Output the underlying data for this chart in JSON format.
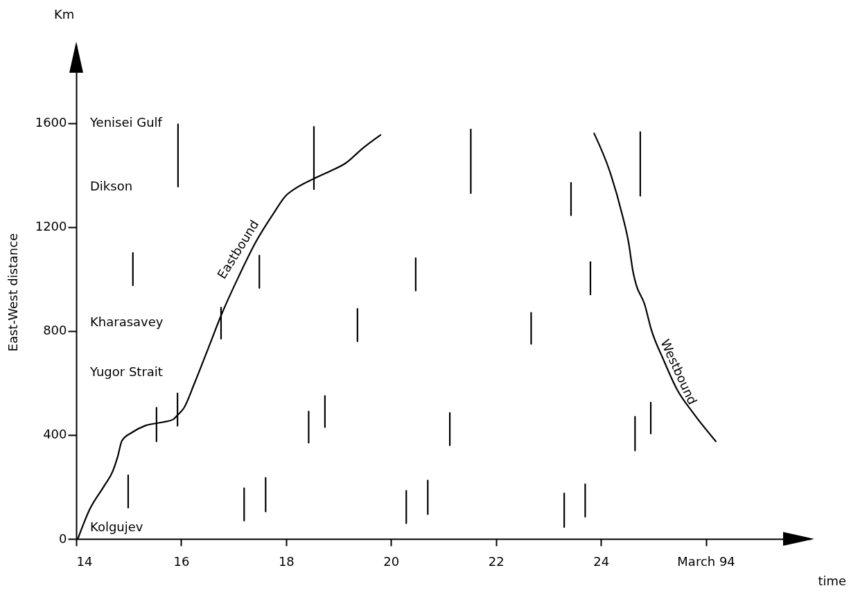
{
  "chart_data": {
    "type": "line",
    "xlabel": "time",
    "ylabel": "East-West distance",
    "xlim": [
      14,
      28
    ],
    "ylim": [
      0,
      1900
    ],
    "xticks": [
      14,
      16,
      18,
      20,
      22,
      24,
      {
        "value": 26,
        "label": "March 94"
      }
    ],
    "yticks": [
      0,
      400,
      800,
      1200,
      1600
    ],
    "grid": false,
    "line_style": "solid",
    "series": [
      {
        "name": "Eastbound",
        "color": "#000000",
        "x": [
          14.03,
          14.26,
          14.53,
          14.7,
          14.79,
          14.87,
          15.06,
          15.32,
          15.65,
          15.85,
          15.93,
          16.05,
          16.25,
          16.51,
          16.77,
          17.1,
          17.43,
          17.76,
          17.99,
          18.16,
          18.53,
          18.82,
          19.13,
          19.48,
          19.8
        ],
        "values": [
          0,
          115,
          203,
          262,
          316,
          377,
          409,
          436,
          449,
          460,
          476,
          503,
          597,
          730,
          864,
          1011,
          1145,
          1252,
          1319,
          1346,
          1386,
          1413,
          1445,
          1506,
          1554
        ]
      },
      {
        "name": "Westbound",
        "color": "#000000",
        "x": [
          23.87,
          24.17,
          24.4,
          24.53,
          24.61,
          24.67,
          24.83,
          24.96,
          25.19,
          25.45,
          25.76,
          26.19
        ],
        "values": [
          1560,
          1413,
          1252,
          1137,
          1030,
          979,
          904,
          805,
          690,
          575,
          484,
          375
        ]
      },
      {
        "color": "#000000",
        "x": [
          14.99,
          14.99
        ],
        "values": [
          120,
          245
        ]
      },
      {
        "color": "#000000",
        "x": [
          15.08,
          15.08
        ],
        "values": [
          975,
          1100
        ]
      },
      {
        "color": "#000000",
        "x": [
          15.53,
          15.53
        ],
        "values": [
          375,
          505
        ]
      },
      {
        "color": "#000000",
        "x": [
          15.93,
          15.93
        ],
        "values": [
          435,
          560
        ]
      },
      {
        "color": "#000000",
        "x": [
          15.94,
          15.94
        ],
        "values": [
          1355,
          1595
        ]
      },
      {
        "color": "#000000",
        "x": [
          16.76,
          16.76
        ],
        "values": [
          770,
          890
        ]
      },
      {
        "color": "#000000",
        "x": [
          17.2,
          17.2
        ],
        "values": [
          70,
          195
        ]
      },
      {
        "color": "#000000",
        "x": [
          17.49,
          17.49
        ],
        "values": [
          965,
          1090
        ]
      },
      {
        "color": "#000000",
        "x": [
          17.61,
          17.61
        ],
        "values": [
          105,
          235
        ]
      },
      {
        "color": "#000000",
        "x": [
          18.43,
          18.43
        ],
        "values": [
          370,
          490
        ]
      },
      {
        "color": "#000000",
        "x": [
          18.53,
          18.53
        ],
        "values": [
          1345,
          1585
        ]
      },
      {
        "color": "#000000",
        "x": [
          18.74,
          18.74
        ],
        "values": [
          430,
          550
        ]
      },
      {
        "color": "#000000",
        "x": [
          19.36,
          19.36
        ],
        "values": [
          760,
          885
        ]
      },
      {
        "color": "#000000",
        "x": [
          20.29,
          20.29
        ],
        "values": [
          60,
          185
        ]
      },
      {
        "color": "#000000",
        "x": [
          20.47,
          20.47
        ],
        "values": [
          955,
          1080
        ]
      },
      {
        "color": "#000000",
        "x": [
          20.7,
          20.7
        ],
        "values": [
          95,
          225
        ]
      },
      {
        "color": "#000000",
        "x": [
          21.12,
          21.12
        ],
        "values": [
          360,
          485
        ]
      },
      {
        "color": "#000000",
        "x": [
          21.52,
          21.52
        ],
        "values": [
          1330,
          1575
        ]
      },
      {
        "color": "#000000",
        "x": [
          22.67,
          22.67
        ],
        "values": [
          750,
          870
        ]
      },
      {
        "color": "#000000",
        "x": [
          23.3,
          23.3
        ],
        "values": [
          45,
          175
        ]
      },
      {
        "color": "#000000",
        "x": [
          23.43,
          23.43
        ],
        "values": [
          1245,
          1370
        ]
      },
      {
        "color": "#000000",
        "x": [
          23.7,
          23.7
        ],
        "values": [
          85,
          210
        ]
      },
      {
        "color": "#000000",
        "x": [
          23.8,
          23.8
        ],
        "values": [
          940,
          1065
        ]
      },
      {
        "color": "#000000",
        "x": [
          24.65,
          24.65
        ],
        "values": [
          340,
          470
        ]
      },
      {
        "color": "#000000",
        "x": [
          24.75,
          24.75
        ],
        "values": [
          1320,
          1565
        ]
      },
      {
        "color": "#000000",
        "x": [
          24.95,
          24.95
        ],
        "values": [
          405,
          525
        ]
      }
    ],
    "annotations": [
      "Km",
      "Yenisei Gulf",
      "Dikson",
      "Kharasavey",
      "Yugor Strait",
      "Kolgujev"
    ]
  }
}
